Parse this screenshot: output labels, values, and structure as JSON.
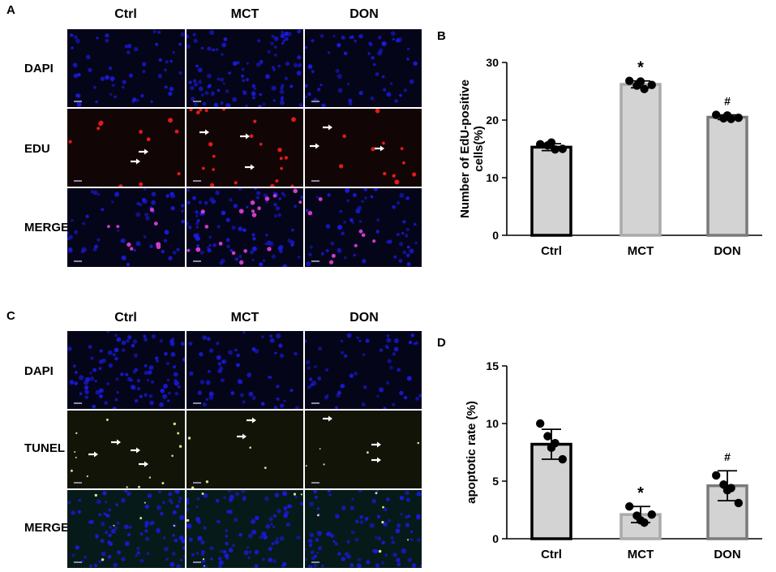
{
  "panels": {
    "A": {
      "letter": "A",
      "columns": [
        "Ctrl",
        "MCT",
        "DON"
      ],
      "rows": [
        "DAPI",
        "EDU",
        "MERGE"
      ]
    },
    "B": {
      "letter": "B"
    },
    "C": {
      "letter": "C",
      "columns": [
        "Ctrl",
        "MCT",
        "DON"
      ],
      "rows": [
        "DAPI",
        "TUNEL",
        "MERGE"
      ]
    },
    "D": {
      "letter": "D"
    }
  },
  "colors": {
    "dapi": "#1a1adc",
    "edu": "#e21a1a",
    "merge_edu": "#d03cc8",
    "tunel": "#f2f2a0",
    "bar_fill": "#d3d3d3",
    "ctrl_edge": "#000000",
    "mct_edge": "#aaaaaa",
    "don_edge": "#7a7a7a"
  },
  "chart_data": [
    {
      "type": "bar",
      "panel": "B",
      "title": "",
      "xlabel": "",
      "ylabel": "Number of EdU-positive cells(%)",
      "ylabel_lines": [
        "Number of EdU-positive",
        "cells(%)"
      ],
      "categories": [
        "Ctrl",
        "MCT",
        "DON"
      ],
      "values": [
        15.3,
        26.2,
        20.5
      ],
      "errors": [
        0.6,
        0.6,
        0.4
      ],
      "points": [
        [
          15.8,
          15.6,
          14.9,
          15.0,
          16.1
        ],
        [
          26.8,
          26.0,
          25.4,
          26.1,
          26.7
        ],
        [
          20.9,
          20.3,
          20.2,
          20.4,
          20.8
        ]
      ],
      "annotations": [
        "",
        "*",
        "#"
      ],
      "ylim": [
        0,
        30
      ],
      "yticks": [
        0,
        10,
        20,
        30
      ],
      "grid": false
    },
    {
      "type": "bar",
      "panel": "D",
      "title": "",
      "xlabel": "",
      "ylabel": "apoptotic rate (%)",
      "ylabel_lines": [
        "apoptotic rate (%)"
      ],
      "categories": [
        "Ctrl",
        "MCT",
        "DON"
      ],
      "values": [
        8.2,
        2.1,
        4.6
      ],
      "errors": [
        1.3,
        0.7,
        1.3
      ],
      "points": [
        [
          10.0,
          8.9,
          8.3,
          6.9,
          7.9
        ],
        [
          2.8,
          2.0,
          1.4,
          2.1,
          1.6
        ],
        [
          5.5,
          4.7,
          4.4,
          3.1,
          4.2
        ]
      ],
      "annotations": [
        "",
        "*",
        "#"
      ],
      "ylim": [
        0,
        15
      ],
      "yticks": [
        0,
        5,
        10,
        15
      ],
      "grid": false
    }
  ]
}
